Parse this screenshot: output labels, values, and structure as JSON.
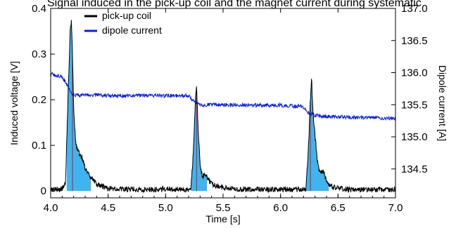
{
  "chart_data": {
    "type": "line",
    "title": "Signal induced in the pick-up coil and the magnet current during systematic",
    "xlabel": "Time [s]",
    "ylabel": "Induced voltage [V]",
    "y2label": "Dipole current [A]",
    "xlim": [
      4.0,
      7.0
    ],
    "ylim": [
      -0.015,
      0.4
    ],
    "y2lim": [
      134.05,
      137.0
    ],
    "x_ticks": [
      "4.0",
      "4.5",
      "5.0",
      "5.5",
      "6.0",
      "6.5",
      "7.0"
    ],
    "y_ticks": [
      "0",
      "0.1",
      "0.2",
      "0.3",
      "0.4"
    ],
    "y2_ticks": [
      "134.5",
      "135.0",
      "135.5",
      "136.0",
      "136.5",
      "137.0"
    ],
    "legend": {
      "placement": "top-left",
      "entries": [
        "pick-up coil",
        "dipole current"
      ]
    },
    "colors": {
      "pickup": "#000000",
      "dipole": "#0b1fd6",
      "fill": "#3fb4ee",
      "marker": "#d0181c"
    },
    "series": [
      {
        "name": "pick-up coil",
        "axis": "left",
        "x": [
          4.0,
          4.1,
          4.13,
          4.15,
          4.17,
          4.18,
          4.19,
          4.2,
          4.22,
          4.25,
          4.28,
          4.3,
          4.35,
          4.4,
          4.45,
          4.5,
          4.6,
          4.8,
          5.0,
          5.2,
          5.22,
          5.24,
          5.26,
          5.27,
          5.28,
          5.3,
          5.32,
          5.34,
          5.36,
          5.4,
          5.45,
          5.6,
          5.9,
          6.2,
          6.22,
          6.24,
          6.26,
          6.27,
          6.28,
          6.3,
          6.32,
          6.34,
          6.37,
          6.4,
          6.45,
          6.6,
          7.0
        ],
        "values": [
          0.003,
          0.004,
          0.02,
          0.2,
          0.35,
          0.375,
          0.3,
          0.18,
          0.1,
          0.08,
          0.07,
          0.05,
          0.03,
          0.015,
          0.01,
          0.005,
          0.005,
          0.003,
          0.004,
          0.003,
          0.004,
          0.08,
          0.2,
          0.23,
          0.15,
          0.06,
          0.03,
          0.04,
          0.03,
          0.015,
          0.01,
          0.004,
          0.003,
          0.003,
          0.004,
          0.08,
          0.2,
          0.245,
          0.18,
          0.12,
          0.07,
          0.04,
          0.045,
          0.02,
          0.008,
          0.003,
          0.003
        ]
      },
      {
        "name": "dipole current",
        "axis": "right",
        "x": [
          4.0,
          4.1,
          4.14,
          4.18,
          4.2,
          4.22,
          4.3,
          4.6,
          5.0,
          5.2,
          5.24,
          5.3,
          5.5,
          6.0,
          6.2,
          6.24,
          6.3,
          6.5,
          7.0
        ],
        "values": [
          135.98,
          135.93,
          135.82,
          135.68,
          135.66,
          135.65,
          135.65,
          135.64,
          135.64,
          135.64,
          135.56,
          135.5,
          135.5,
          135.49,
          135.47,
          135.38,
          135.33,
          135.31,
          135.29
        ]
      }
    ],
    "markers_x": [
      4.19,
      5.27,
      6.26
    ]
  }
}
